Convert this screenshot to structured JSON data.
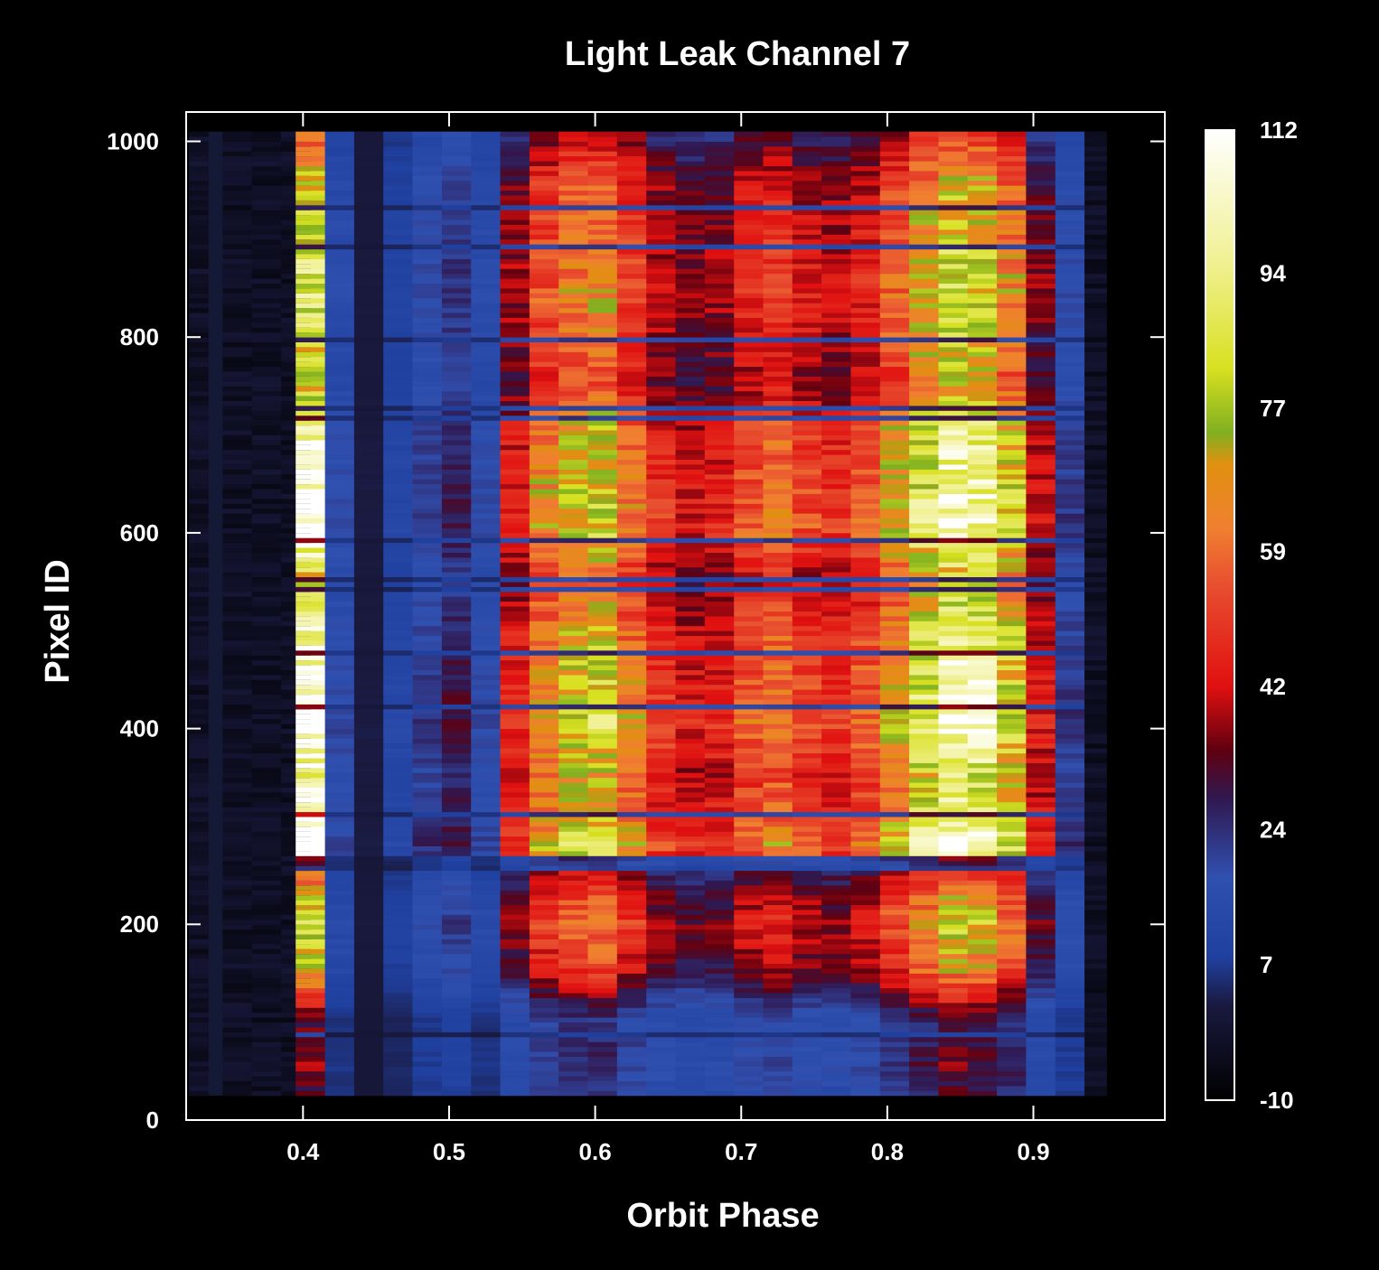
{
  "chart_data": {
    "type": "heatmap",
    "title": "Light Leak Channel 7",
    "xlabel": "Orbit Phase",
    "ylabel": "Pixel ID",
    "xlim": [
      0.32,
      0.99
    ],
    "ylim": [
      0,
      1030
    ],
    "x_ticks": [
      0.4,
      0.5,
      0.6,
      0.7,
      0.8,
      0.9
    ],
    "x_tick_labels": [
      "0.4",
      "0.5",
      "0.6",
      "0.7",
      "0.8",
      "0.9"
    ],
    "y_ticks": [
      0,
      200,
      400,
      600,
      800,
      1000
    ],
    "y_tick_labels": [
      "0",
      "200",
      "400",
      "600",
      "800",
      "1000"
    ],
    "data_x_range": [
      0.322,
      0.95
    ],
    "data_y_range": [
      25,
      1010
    ],
    "phase_columns": [
      0.325,
      0.355,
      0.375,
      0.395,
      0.405,
      0.425,
      0.445,
      0.465,
      0.485,
      0.505,
      0.525,
      0.545,
      0.565,
      0.585,
      0.605,
      0.625,
      0.645,
      0.665,
      0.685,
      0.705,
      0.725,
      0.745,
      0.765,
      0.785,
      0.805,
      0.825,
      0.845,
      0.865,
      0.885,
      0.905,
      0.925,
      0.945
    ],
    "column_profile": [
      -5,
      -6,
      -6,
      -5,
      100,
      18,
      2,
      12,
      22,
      28,
      18,
      45,
      65,
      75,
      78,
      62,
      48,
      42,
      45,
      55,
      60,
      52,
      48,
      55,
      70,
      85,
      95,
      92,
      78,
      42,
      22,
      -5
    ],
    "pixel_profile": [
      [
        0,
        0.3
      ],
      [
        25,
        0.3
      ],
      [
        50,
        0.35
      ],
      [
        100,
        0.3
      ],
      [
        150,
        0.65
      ],
      [
        200,
        0.8
      ],
      [
        250,
        0.55
      ],
      [
        260,
        0.9
      ],
      [
        280,
        1.15
      ],
      [
        300,
        1.0
      ],
      [
        350,
        0.9
      ],
      [
        400,
        1.1
      ],
      [
        450,
        1.0
      ],
      [
        500,
        0.95
      ],
      [
        550,
        0.75
      ],
      [
        600,
        1.05
      ],
      [
        650,
        1.0
      ],
      [
        700,
        0.95
      ],
      [
        750,
        0.7
      ],
      [
        800,
        0.8
      ],
      [
        850,
        0.85
      ],
      [
        900,
        0.8
      ],
      [
        950,
        0.75
      ],
      [
        1000,
        0.55
      ],
      [
        1030,
        0.55
      ]
    ],
    "colorbar": {
      "min": -10,
      "max": 112,
      "tick_values": [
        112,
        94,
        77,
        59,
        42,
        24,
        7,
        -10
      ],
      "tick_labels": [
        "112",
        "94",
        "77",
        "59",
        "42",
        "24",
        "7",
        "-10"
      ],
      "colormap": [
        [
          -10,
          "#000000"
        ],
        [
          2,
          "#1a1a40"
        ],
        [
          8,
          "#2040a0"
        ],
        [
          18,
          "#3050b0"
        ],
        [
          28,
          "#301850"
        ],
        [
          34,
          "#600010"
        ],
        [
          42,
          "#e01010"
        ],
        [
          55,
          "#e85030"
        ],
        [
          62,
          "#f08030"
        ],
        [
          70,
          "#e09010"
        ],
        [
          74,
          "#80b020"
        ],
        [
          82,
          "#d8e020"
        ],
        [
          95,
          "#f0f090"
        ],
        [
          112,
          "#ffffff"
        ]
      ]
    }
  }
}
